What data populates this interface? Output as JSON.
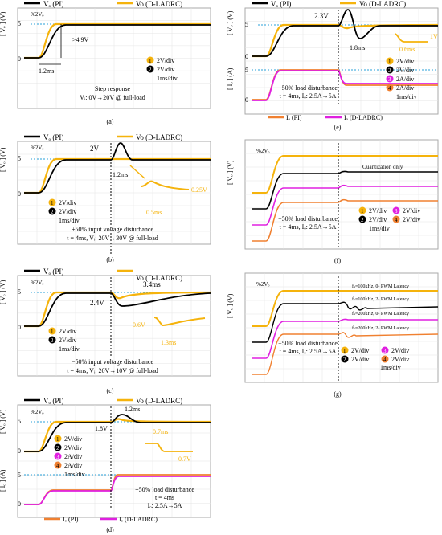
{
  "colors": {
    "pi": "#000000",
    "ladrc": "#f5b30c",
    "i_ladrc": "#e020e0",
    "i_pi": "#f08030",
    "ref": "#2aa0d8",
    "annot": "#000000",
    "annot_y": "#f5b30c"
  },
  "panels": [
    {
      "id": "a",
      "label": "(a)",
      "legend": {
        "pi": "Vₒ (PI)",
        "ladrc": "Vo (D-LADRC)"
      },
      "ylabel": "[ Vₒ ]\n(V)",
      "ticks": [
        "5",
        "0"
      ],
      "scale": [
        {
          "n": "1",
          "t": "2V/div"
        },
        {
          "n": "2",
          "t": "2V/div"
        },
        {
          "n": "",
          "t": "1ms/div"
        }
      ],
      "notes": [
        "%2Vₒ",
        ">4.9V",
        "1.2ms"
      ],
      "caption": [
        "Step response",
        "Vᵢ: 0V→20V @ full-load"
      ]
    },
    {
      "id": "b",
      "label": "(b)",
      "legend": {
        "pi": "Vₒ (PI)",
        "ladrc": "Vo (D-LADRC)"
      },
      "ylabel": "[ Vₒ ]\n(V)",
      "ticks": [
        "5",
        "0"
      ],
      "scale": [
        {
          "n": "1",
          "t": "2V/div"
        },
        {
          "n": "2",
          "t": "2V/div"
        },
        {
          "n": "",
          "t": "1ms/div"
        }
      ],
      "notes": [
        "%2Vₒ",
        "2V",
        "1.2ms",
        "0.25V",
        "0.5ms"
      ],
      "caption": [
        "+50% input voltage disturbance",
        "t = 4ms, Vᵢ: 20V→30V @ full-load"
      ]
    },
    {
      "id": "c",
      "label": "(c)",
      "legend": {
        "pi": "Vₒ (PI)",
        "ladrc": "Vo (D-LADRC)"
      },
      "ylabel": "[ Vₒ ]\n(V)",
      "ticks": [
        "5",
        "0"
      ],
      "scale": [
        {
          "n": "1",
          "t": "2V/div"
        },
        {
          "n": "2",
          "t": "2V/div"
        },
        {
          "n": "",
          "t": "1ms/div"
        }
      ],
      "notes": [
        "%2Vₒ",
        "3.4ms",
        "2.4V",
        "0.6V",
        "1.3ms"
      ],
      "caption": [
        "−50% input voltage disturbance",
        "t = 4ms, Vᵢ: 20V→10V @ full-load"
      ]
    },
    {
      "id": "d",
      "label": "(d)",
      "legend": {
        "pi": "Vₒ (PI)",
        "ladrc": "Vo (D-LADRC)",
        "ipi": "Iₒ (PI)",
        "iladrc": "Iₒ (D-LADRC)"
      },
      "ylabel": "[ Vₒ ]\n(V)",
      "ylabel2": "[ Iₒ ]\n(A)",
      "ticks": [
        "5",
        "0"
      ],
      "ticks2": [
        "5",
        "0"
      ],
      "scale": [
        {
          "n": "1",
          "t": "2V/div"
        },
        {
          "n": "2",
          "t": "2V/div"
        },
        {
          "n": "3",
          "t": "2A/div"
        },
        {
          "n": "4",
          "t": "2A/div"
        },
        {
          "n": "",
          "t": "1ms/div"
        }
      ],
      "notes": [
        "%2Vₒ",
        "1.2ms",
        "1.8V",
        "0.7ms",
        "0.7V"
      ],
      "caption": [
        "+50%  load disturbance",
        "t = 4ms",
        "Iₒ: 2.5A→5A"
      ]
    },
    {
      "id": "e",
      "label": "(e)",
      "legend": {
        "pi": "Vₒ (PI)",
        "ladrc": "Vo (D-LADRC)",
        "ipi": "Iₒ (PI)",
        "iladrc": "Iₒ (D-LADRC)"
      },
      "ylabel": "[ Vₒ ]\n(V)",
      "ylabel2": "[ Iₒ ]\n(A)",
      "ticks": [
        "5",
        "0"
      ],
      "ticks2": [
        "5",
        "0"
      ],
      "scale": [
        {
          "n": "1",
          "t": "2V/div"
        },
        {
          "n": "2",
          "t": "2V/div"
        },
        {
          "n": "3",
          "t": "2A/div"
        },
        {
          "n": "4",
          "t": "2A/div"
        },
        {
          "n": "",
          "t": "1ms/div"
        }
      ],
      "notes": [
        "2.3V",
        "1.8ms",
        "0.6ms",
        "1V"
      ],
      "caption": [
        "−50% load disturbance",
        "t = 4ms, Iₒ: 2.5A→5A"
      ]
    },
    {
      "id": "f",
      "label": "(f)",
      "ylabel": "[ Vₒ ]\n(V)",
      "scale": [
        {
          "n": "1",
          "t": "2V/div"
        },
        {
          "n": "3",
          "t": "2V/div"
        },
        {
          "n": "2",
          "t": "2V/div"
        },
        {
          "n": "4",
          "t": "2V/div"
        },
        {
          "n": "",
          "t": "1ms/div"
        }
      ],
      "notes": [
        "%2Vₒ",
        "Quantization only"
      ],
      "caption": [
        "−50%  load disturbance",
        "t = 4ms, Iₒ: 2.5A→5A"
      ]
    },
    {
      "id": "g",
      "label": "(g)",
      "ylabel": "[ Vₒ ]\n(V)",
      "scale": [
        {
          "n": "1",
          "t": "2V/div"
        },
        {
          "n": "3",
          "t": "2V/div"
        },
        {
          "n": "2",
          "t": "2V/div"
        },
        {
          "n": "4",
          "t": "2V/div"
        },
        {
          "n": "",
          "t": "1ms/div"
        }
      ],
      "notes": [
        "%2Vₒ",
        "fₛ=100kHz, 0- PWM Latency",
        "fₛ=100kHz, 2- PWM Latency",
        "fₛ=200kHz, 0- PWM Latency",
        "fₛ=200kHz, 2- PWM Latency"
      ],
      "caption": [
        "−50% load disturbance",
        "t = 4ms, Iₒ: 2.5A→5A"
      ]
    }
  ],
  "chart_data": [
    {
      "type": "line",
      "panel": "a",
      "series": [
        {
          "name": "Vₒ (PI)"
        },
        {
          "name": "Vo (D-LADRC)"
        }
      ]
    },
    {
      "type": "line",
      "panel": "b",
      "series": [
        {
          "name": "Vₒ (PI)"
        },
        {
          "name": "Vo (D-LADRC)"
        }
      ]
    },
    {
      "type": "line",
      "panel": "c",
      "series": [
        {
          "name": "Vₒ (PI)"
        },
        {
          "name": "Vo (D-LADRC)"
        }
      ]
    },
    {
      "type": "line",
      "panel": "d",
      "series": [
        {
          "name": "Vₒ (PI)"
        },
        {
          "name": "Vo (D-LADRC)"
        },
        {
          "name": "Iₒ (PI)"
        },
        {
          "name": "Iₒ (D-LADRC)"
        }
      ]
    },
    {
      "type": "line",
      "panel": "e",
      "series": [
        {
          "name": "Vₒ (PI)"
        },
        {
          "name": "Vo (D-LADRC)"
        },
        {
          "name": "Iₒ (PI)"
        },
        {
          "name": "Iₒ (D-LADRC)"
        }
      ]
    },
    {
      "type": "line",
      "panel": "f"
    },
    {
      "type": "line",
      "panel": "g"
    }
  ]
}
